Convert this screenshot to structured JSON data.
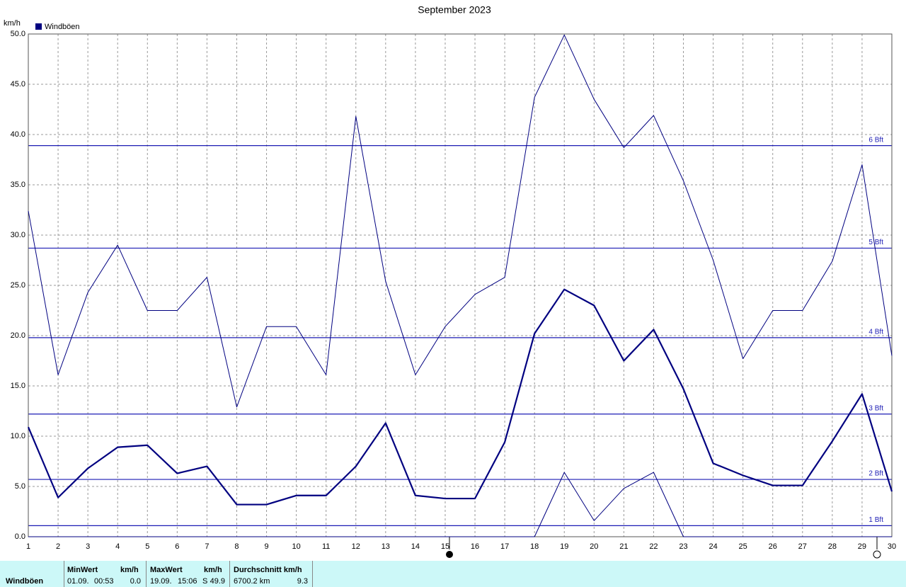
{
  "chart_data": {
    "type": "line",
    "title": "September 2023",
    "y_label": "km/h",
    "categories": [
      1,
      2,
      3,
      4,
      5,
      6,
      7,
      8,
      9,
      10,
      11,
      12,
      13,
      14,
      15,
      16,
      17,
      18,
      19,
      20,
      21,
      22,
      23,
      24,
      25,
      26,
      27,
      28,
      29,
      30
    ],
    "series": [
      {
        "color": "#000080",
        "width": 1,
        "values": [
          32.4,
          16.1,
          24.3,
          29.0,
          22.5,
          22.5,
          25.8,
          12.9,
          20.9,
          20.9,
          16.1,
          41.8,
          25.4,
          16.1,
          20.9,
          24.1,
          25.8,
          43.7,
          49.9,
          43.5,
          38.7,
          41.9,
          35.4,
          27.5,
          17.7,
          22.5,
          22.5,
          27.4,
          37.0,
          18.0
        ]
      },
      {
        "name": "Windböen",
        "color": "#000080",
        "width": 2.2,
        "values": [
          10.9,
          3.9,
          6.8,
          8.9,
          9.1,
          6.3,
          7.0,
          3.2,
          3.2,
          4.1,
          4.1,
          7.0,
          11.3,
          4.1,
          3.8,
          3.8,
          9.4,
          20.2,
          24.6,
          23.0,
          17.5,
          20.6,
          14.7,
          7.3,
          6.1,
          5.1,
          5.1,
          9.5,
          14.2,
          4.5
        ]
      },
      {
        "color": "#000080",
        "width": 1,
        "values": [
          0,
          0,
          0,
          0,
          0,
          0,
          0,
          0,
          0,
          0,
          0,
          0,
          0,
          0,
          0,
          0,
          0,
          0,
          6.4,
          1.6,
          4.8,
          6.4,
          0,
          0,
          0,
          0,
          0,
          0,
          0,
          0
        ]
      }
    ],
    "ylim": [
      0,
      50
    ],
    "yticks": [
      {
        "value": 0,
        "label": "0.0"
      },
      {
        "value": 5,
        "label": "5.0"
      },
      {
        "value": 10,
        "label": "10.0"
      },
      {
        "value": 15,
        "label": "15.0"
      },
      {
        "value": 20,
        "label": "20.0"
      },
      {
        "value": 25,
        "label": "25.0"
      },
      {
        "value": 30,
        "label": "30.0"
      },
      {
        "value": 35,
        "label": "35.0"
      },
      {
        "value": 40,
        "label": "40.0"
      },
      {
        "value": 45,
        "label": "45.0"
      },
      {
        "value": 50,
        "label": "50.0"
      }
    ],
    "reference_lines": [
      {
        "value": 1.1,
        "label": "1 Bft"
      },
      {
        "value": 5.7,
        "label": "2 Bft"
      },
      {
        "value": 12.2,
        "label": "3 Bft"
      },
      {
        "value": 19.8,
        "label": "4 Bft"
      },
      {
        "value": 28.7,
        "label": "5 Bft"
      },
      {
        "value": 38.9,
        "label": "6 Bft"
      }
    ],
    "reference_color": "#1c1cb4",
    "grid": true
  },
  "summary": {
    "label": "Windböen",
    "min": {
      "header": "MinWert",
      "unit": "km/h",
      "date": "01.09.",
      "time": "00:53",
      "value": "0.0"
    },
    "max": {
      "header": "MaxWert",
      "unit": "km/h",
      "date": "19.09.",
      "time": "15:06",
      "direction": "S",
      "value": "49.9"
    },
    "mean": {
      "header": "Durchschnitt km/h",
      "distance": "6700.2 km",
      "value": "9.3"
    }
  }
}
